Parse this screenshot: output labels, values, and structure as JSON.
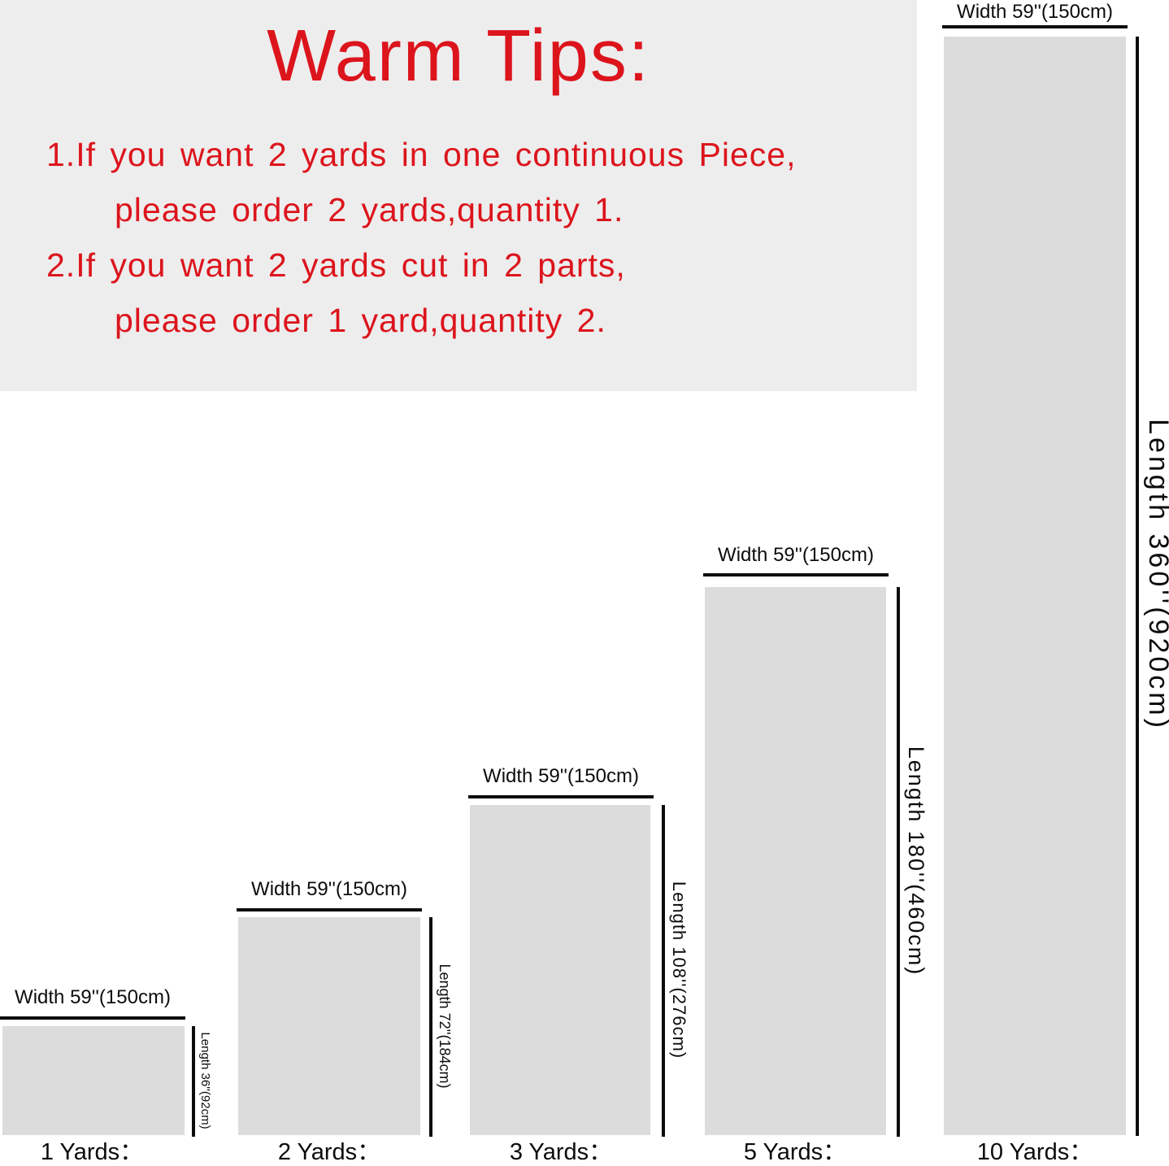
{
  "tips": {
    "title": "Warm Tips:",
    "lines": [
      "1.If you want 2 yards in one continuous Piece,",
      "please order 2 yards,quantity 1.",
      "2.If you want 2 yards cut in 2 parts,",
      "please order 1 yard,quantity 2."
    ]
  },
  "yards": [
    {
      "quantity": 1,
      "caption": "1 Yards：",
      "width_label": "Width 59''(150cm)",
      "length_label": "Length 36''(92cm)",
      "width_inches": 59,
      "width_cm": 150,
      "length_inches": 36,
      "length_cm": 92
    },
    {
      "quantity": 2,
      "caption": "2 Yards：",
      "width_label": "Width 59''(150cm)",
      "length_label": "Length 72''(184cm)",
      "width_inches": 59,
      "width_cm": 150,
      "length_inches": 72,
      "length_cm": 184
    },
    {
      "quantity": 3,
      "caption": "3 Yards：",
      "width_label": "Width 59''(150cm)",
      "length_label": "Length 108''(276cm)",
      "width_inches": 59,
      "width_cm": 150,
      "length_inches": 108,
      "length_cm": 276
    },
    {
      "quantity": 5,
      "caption": "5 Yards：",
      "width_label": "Width 59''(150cm)",
      "length_label": "Length 180''(460cm)",
      "width_inches": 59,
      "width_cm": 150,
      "length_inches": 180,
      "length_cm": 460
    },
    {
      "quantity": 10,
      "caption": "10 Yards：",
      "width_label": "Width 59''(150cm)",
      "length_label": "Length 360''(920cm)",
      "width_inches": 59,
      "width_cm": 150,
      "length_inches": 360,
      "length_cm": 920
    }
  ],
  "colors": {
    "accent_red": "#dc141c",
    "swatch_gray": "#dcdcdc",
    "panel_gray": "#ededed",
    "line_black": "#0c0c0c"
  }
}
